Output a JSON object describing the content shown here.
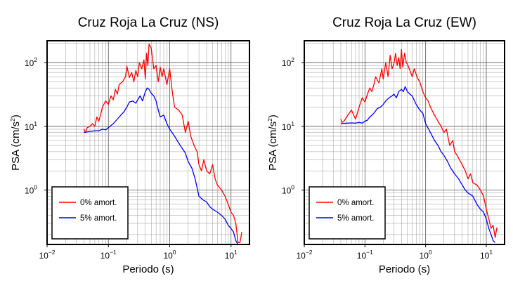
{
  "chart_data": [
    {
      "type": "line",
      "title": "Cruz Roja La Cruz (NS)",
      "xlabel": "Periodo (s)",
      "ylabel": "PSA (cm/s²)",
      "xscale": "log",
      "yscale": "log",
      "xlim": [
        0.01,
        20
      ],
      "ylim": [
        0.14,
        220
      ],
      "x_ticks": [
        {
          "base": "10",
          "exp": "−2"
        },
        {
          "base": "10",
          "exp": "−1"
        },
        {
          "base": "10",
          "exp": "0"
        },
        {
          "base": "10",
          "exp": "1"
        }
      ],
      "y_ticks": [
        {
          "base": "10",
          "exp": "0"
        },
        {
          "base": "10",
          "exp": "1"
        },
        {
          "base": "10",
          "exp": "2"
        }
      ],
      "grid": true,
      "legend_position": "bottom-left",
      "series": [
        {
          "name": "0% amort.",
          "color": "#ff0000",
          "x": [
            0.04,
            0.042,
            0.045,
            0.05,
            0.055,
            0.06,
            0.065,
            0.07,
            0.08,
            0.09,
            0.1,
            0.11,
            0.12,
            0.13,
            0.14,
            0.15,
            0.17,
            0.19,
            0.2,
            0.22,
            0.24,
            0.26,
            0.28,
            0.3,
            0.32,
            0.35,
            0.38,
            0.4,
            0.42,
            0.44,
            0.46,
            0.5,
            0.55,
            0.6,
            0.65,
            0.7,
            0.75,
            0.8,
            0.9,
            1.0,
            1.1,
            1.2,
            1.4,
            1.6,
            1.8,
            2.0,
            2.2,
            2.5,
            2.8,
            3.0,
            3.3,
            3.6,
            4.0,
            4.5,
            5.0,
            5.5,
            6.0,
            7.0,
            8.0,
            9.0,
            10.0,
            11.0,
            12.0,
            13.0,
            14.0,
            15.0
          ],
          "y": [
            9.0,
            8.0,
            9.5,
            10.0,
            11.0,
            10.0,
            14.0,
            12.0,
            20.0,
            25.0,
            22.0,
            30.0,
            26.0,
            38.0,
            32.0,
            45.0,
            50.0,
            60.0,
            88.0,
            58.0,
            70.0,
            50.0,
            75.0,
            60.0,
            100.0,
            80.0,
            110.0,
            55.0,
            140.0,
            90.0,
            195.0,
            170.0,
            80.0,
            90.0,
            50.0,
            85.0,
            60.0,
            80.0,
            45.0,
            80.0,
            35.0,
            20.0,
            18.0,
            15.0,
            8.0,
            12.0,
            7.0,
            5.0,
            4.0,
            2.5,
            2.0,
            3.0,
            2.0,
            1.8,
            2.5,
            1.5,
            1.2,
            1.0,
            0.8,
            0.6,
            0.45,
            0.4,
            0.3,
            0.15,
            0.15,
            0.22
          ]
        },
        {
          "name": "5% amort.",
          "color": "#0000ff",
          "x": [
            0.04,
            0.05,
            0.06,
            0.07,
            0.08,
            0.09,
            0.1,
            0.12,
            0.14,
            0.16,
            0.18,
            0.2,
            0.22,
            0.25,
            0.28,
            0.3,
            0.33,
            0.36,
            0.4,
            0.43,
            0.46,
            0.5,
            0.55,
            0.6,
            0.65,
            0.7,
            0.8,
            0.9,
            1.0,
            1.2,
            1.4,
            1.6,
            1.8,
            2.0,
            2.3,
            2.6,
            3.0,
            3.5,
            4.0,
            4.5,
            5.0,
            6.0,
            7.0,
            8.0,
            9.0,
            10.0,
            11.0,
            12.0,
            13.0
          ],
          "y": [
            8.0,
            8.3,
            8.5,
            8.5,
            9.0,
            8.8,
            9.5,
            11.0,
            13.0,
            15.0,
            17.0,
            20.0,
            24.0,
            25.0,
            23.0,
            26.0,
            30.0,
            25.0,
            35.0,
            40.0,
            38.0,
            33.0,
            30.0,
            25.0,
            18.0,
            14.0,
            15.0,
            11.0,
            9.0,
            7.0,
            5.5,
            4.5,
            3.8,
            2.8,
            2.2,
            1.5,
            0.8,
            0.7,
            0.65,
            0.55,
            0.5,
            0.45,
            0.4,
            0.35,
            0.28,
            0.25,
            0.22,
            0.16,
            0.14
          ]
        }
      ]
    },
    {
      "type": "line",
      "title": "Cruz Roja La Cruz (EW)",
      "xlabel": "Periodo (s)",
      "ylabel": "PSA (cm/s²)",
      "xscale": "log",
      "yscale": "log",
      "xlim": [
        0.01,
        20
      ],
      "ylim": [
        0.14,
        220
      ],
      "x_ticks": [
        {
          "base": "10",
          "exp": "−2"
        },
        {
          "base": "10",
          "exp": "−1"
        },
        {
          "base": "10",
          "exp": "0"
        },
        {
          "base": "10",
          "exp": "1"
        }
      ],
      "y_ticks": [
        {
          "base": "10",
          "exp": "0"
        },
        {
          "base": "10",
          "exp": "1"
        },
        {
          "base": "10",
          "exp": "2"
        }
      ],
      "grid": true,
      "legend_position": "bottom-left",
      "series": [
        {
          "name": "0% amort.",
          "color": "#ff0000",
          "x": [
            0.04,
            0.042,
            0.045,
            0.05,
            0.055,
            0.06,
            0.065,
            0.07,
            0.08,
            0.09,
            0.1,
            0.11,
            0.12,
            0.13,
            0.14,
            0.15,
            0.17,
            0.19,
            0.2,
            0.22,
            0.24,
            0.26,
            0.28,
            0.3,
            0.32,
            0.34,
            0.36,
            0.38,
            0.4,
            0.42,
            0.45,
            0.48,
            0.5,
            0.55,
            0.6,
            0.65,
            0.7,
            0.75,
            0.8,
            0.9,
            1.0,
            1.1,
            1.2,
            1.4,
            1.6,
            1.8,
            2.0,
            2.2,
            2.5,
            2.8,
            3.0,
            3.3,
            3.6,
            4.0,
            4.5,
            5.0,
            5.5,
            6.0,
            7.0,
            8.0,
            9.0,
            10.0,
            11.0,
            12.0,
            13.0,
            14.0,
            15.0
          ],
          "y": [
            13.0,
            11.5,
            12.0,
            14.0,
            16.0,
            18.0,
            15.0,
            13.0,
            20.0,
            28.0,
            24.0,
            32.0,
            40.0,
            35.0,
            45.0,
            60.0,
            48.0,
            80.0,
            55.0,
            100.0,
            60.0,
            130.0,
            80.0,
            95.0,
            140.0,
            90.0,
            120.0,
            80.0,
            160.0,
            85.0,
            140.0,
            100.0,
            95.0,
            75.0,
            60.0,
            80.0,
            65.0,
            55.0,
            50.0,
            35.0,
            28.0,
            25.0,
            20.0,
            15.0,
            12.0,
            10.0,
            8.0,
            9.0,
            5.0,
            6.0,
            4.0,
            3.5,
            3.0,
            2.5,
            2.0,
            1.5,
            1.8,
            1.3,
            1.2,
            1.0,
            0.8,
            0.5,
            0.35,
            0.25,
            0.28,
            0.18,
            0.26
          ]
        },
        {
          "name": "5% amort.",
          "color": "#0000ff",
          "x": [
            0.04,
            0.05,
            0.06,
            0.07,
            0.08,
            0.09,
            0.1,
            0.11,
            0.12,
            0.14,
            0.16,
            0.18,
            0.2,
            0.22,
            0.25,
            0.28,
            0.3,
            0.33,
            0.36,
            0.4,
            0.43,
            0.46,
            0.5,
            0.55,
            0.6,
            0.7,
            0.8,
            0.9,
            1.0,
            1.2,
            1.4,
            1.6,
            1.8,
            2.0,
            2.3,
            2.6,
            3.0,
            3.5,
            4.0,
            4.5,
            5.0,
            6.0,
            7.0,
            8.0,
            9.0,
            10.0,
            11.0,
            12.0,
            13.0,
            14.0
          ],
          "y": [
            11.0,
            11.2,
            11.3,
            11.2,
            11.5,
            11.2,
            12.0,
            12.5,
            14.0,
            16.0,
            19.0,
            20.0,
            22.0,
            25.0,
            28.0,
            30.0,
            32.0,
            28.0,
            35.0,
            38.0,
            35.0,
            42.0,
            35.0,
            32.0,
            30.0,
            22.0,
            18.0,
            16.0,
            11.0,
            8.0,
            6.0,
            5.0,
            4.0,
            3.5,
            2.8,
            2.2,
            1.8,
            1.5,
            1.2,
            1.0,
            0.9,
            0.8,
            0.6,
            0.5,
            0.45,
            0.35,
            0.25,
            0.2,
            0.16,
            0.15
          ]
        }
      ]
    }
  ]
}
